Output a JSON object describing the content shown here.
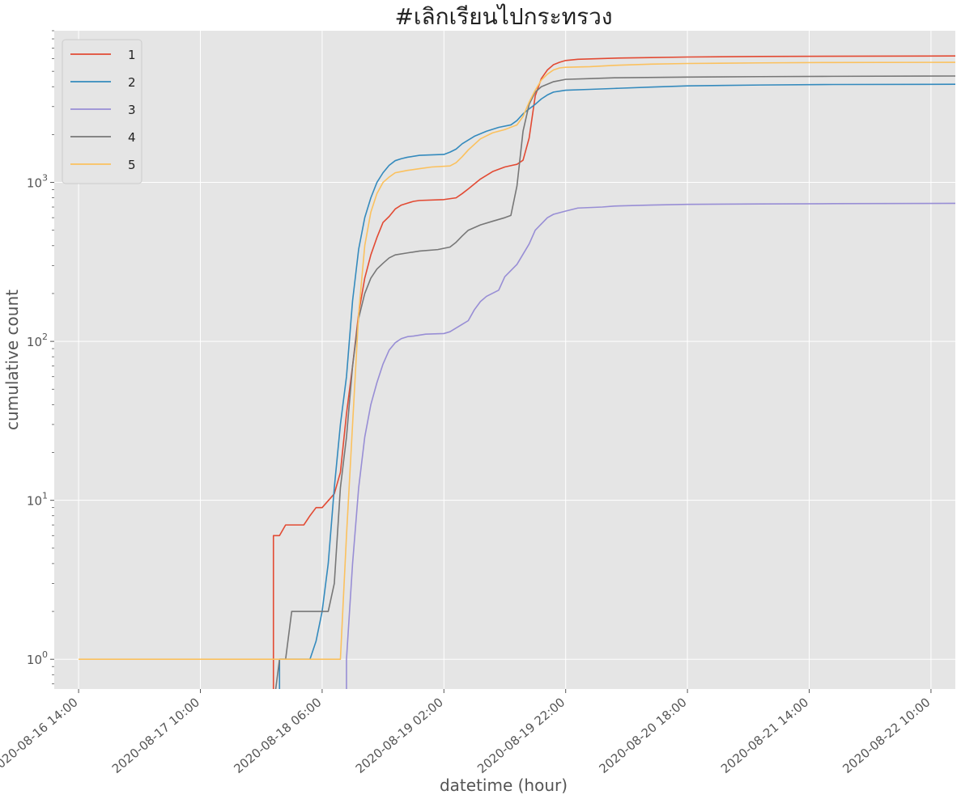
{
  "chart_data": {
    "type": "line",
    "title": "#เลิกเรียนไปกระทรวง",
    "xlabel": "datetime (hour)",
    "ylabel": "cumulative count",
    "yscale": "log",
    "ylim": [
      0.65,
      9000
    ],
    "xlim": [
      "2020-08-16 10:00",
      "2020-08-22 14:00"
    ],
    "grid": true,
    "legend_position": "top-left",
    "x_ticks": [
      "2020-08-16 14:00",
      "2020-08-17 10:00",
      "2020-08-18 06:00",
      "2020-08-19 02:00",
      "2020-08-19 22:00",
      "2020-08-20 18:00",
      "2020-08-21 14:00",
      "2020-08-22 10:00"
    ],
    "y_ticks": [
      {
        "value": 1,
        "base": "10",
        "exp": "0"
      },
      {
        "value": 10,
        "base": "10",
        "exp": "1"
      },
      {
        "value": 100,
        "base": "10",
        "exp": "2"
      },
      {
        "value": 1000,
        "base": "10",
        "exp": "3"
      }
    ],
    "series": [
      {
        "name": "1",
        "color": "#E24A33",
        "points": [
          [
            "2020-08-17 22:00",
            0.5
          ],
          [
            "2020-08-17 22:00",
            6
          ],
          [
            "2020-08-17 23:00",
            6
          ],
          [
            "2020-08-18 00:00",
            7
          ],
          [
            "2020-08-18 03:00",
            7
          ],
          [
            "2020-08-18 04:00",
            8
          ],
          [
            "2020-08-18 05:00",
            9
          ],
          [
            "2020-08-18 06:00",
            9
          ],
          [
            "2020-08-18 08:00",
            11
          ],
          [
            "2020-08-18 09:00",
            15
          ],
          [
            "2020-08-18 10:00",
            35
          ],
          [
            "2020-08-18 11:00",
            70
          ],
          [
            "2020-08-18 12:00",
            150
          ],
          [
            "2020-08-18 13:00",
            250
          ],
          [
            "2020-08-18 14:00",
            350
          ],
          [
            "2020-08-18 15:00",
            450
          ],
          [
            "2020-08-18 16:00",
            560
          ],
          [
            "2020-08-18 17:00",
            610
          ],
          [
            "2020-08-18 18:00",
            680
          ],
          [
            "2020-08-18 19:00",
            720
          ],
          [
            "2020-08-18 20:00",
            740
          ],
          [
            "2020-08-18 21:00",
            760
          ],
          [
            "2020-08-18 22:00",
            770
          ],
          [
            "2020-08-19 02:00",
            780
          ],
          [
            "2020-08-19 04:00",
            800
          ],
          [
            "2020-08-19 05:00",
            850
          ],
          [
            "2020-08-19 06:00",
            910
          ],
          [
            "2020-08-19 08:00",
            1050
          ],
          [
            "2020-08-19 10:00",
            1170
          ],
          [
            "2020-08-19 12:00",
            1250
          ],
          [
            "2020-08-19 14:00",
            1300
          ],
          [
            "2020-08-19 15:00",
            1380
          ],
          [
            "2020-08-19 16:00",
            1900
          ],
          [
            "2020-08-19 17:00",
            3500
          ],
          [
            "2020-08-19 18:00",
            4500
          ],
          [
            "2020-08-19 19:00",
            5100
          ],
          [
            "2020-08-19 20:00",
            5500
          ],
          [
            "2020-08-19 21:00",
            5700
          ],
          [
            "2020-08-19 22:00",
            5850
          ],
          [
            "2020-08-20 00:00",
            5950
          ],
          [
            "2020-08-20 06:00",
            6050
          ],
          [
            "2020-08-20 12:00",
            6100
          ],
          [
            "2020-08-20 18:00",
            6150
          ],
          [
            "2020-08-21 06:00",
            6200
          ],
          [
            "2020-08-22 00:00",
            6230
          ],
          [
            "2020-08-22 23:00",
            6250
          ]
        ]
      },
      {
        "name": "2",
        "color": "#348ABD",
        "points": [
          [
            "2020-08-17 23:00",
            0.5
          ],
          [
            "2020-08-17 23:00",
            1
          ],
          [
            "2020-08-18 04:00",
            1
          ],
          [
            "2020-08-18 05:00",
            1.3
          ],
          [
            "2020-08-18 06:00",
            2
          ],
          [
            "2020-08-18 07:00",
            4
          ],
          [
            "2020-08-18 08:00",
            12
          ],
          [
            "2020-08-18 09:00",
            30
          ],
          [
            "2020-08-18 10:00",
            60
          ],
          [
            "2020-08-18 11:00",
            180
          ],
          [
            "2020-08-18 12:00",
            380
          ],
          [
            "2020-08-18 13:00",
            600
          ],
          [
            "2020-08-18 14:00",
            800
          ],
          [
            "2020-08-18 15:00",
            1000
          ],
          [
            "2020-08-18 16:00",
            1150
          ],
          [
            "2020-08-18 17:00",
            1280
          ],
          [
            "2020-08-18 18:00",
            1370
          ],
          [
            "2020-08-18 19:00",
            1410
          ],
          [
            "2020-08-18 20:00",
            1440
          ],
          [
            "2020-08-18 22:00",
            1480
          ],
          [
            "2020-08-19 02:00",
            1500
          ],
          [
            "2020-08-19 03:00",
            1550
          ],
          [
            "2020-08-19 04:00",
            1620
          ],
          [
            "2020-08-19 05:00",
            1750
          ],
          [
            "2020-08-19 07:00",
            1950
          ],
          [
            "2020-08-19 09:00",
            2100
          ],
          [
            "2020-08-19 11:00",
            2220
          ],
          [
            "2020-08-19 13:00",
            2300
          ],
          [
            "2020-08-19 14:00",
            2450
          ],
          [
            "2020-08-19 15:00",
            2700
          ],
          [
            "2020-08-19 16:00",
            2900
          ],
          [
            "2020-08-19 17:00",
            3100
          ],
          [
            "2020-08-19 18:00",
            3350
          ],
          [
            "2020-08-19 19:00",
            3550
          ],
          [
            "2020-08-19 20:00",
            3700
          ],
          [
            "2020-08-19 22:00",
            3800
          ],
          [
            "2020-08-20 02:00",
            3850
          ],
          [
            "2020-08-20 06:00",
            3900
          ],
          [
            "2020-08-20 12:00",
            3980
          ],
          [
            "2020-08-20 18:00",
            4050
          ],
          [
            "2020-08-21 06:00",
            4100
          ],
          [
            "2020-08-21 18:00",
            4130
          ],
          [
            "2020-08-22 23:00",
            4150
          ]
        ]
      },
      {
        "name": "3",
        "color": "#988ED5",
        "points": [
          [
            "2020-08-18 10:00",
            0.5
          ],
          [
            "2020-08-18 10:00",
            1
          ],
          [
            "2020-08-18 11:00",
            4
          ],
          [
            "2020-08-18 12:00",
            12
          ],
          [
            "2020-08-18 13:00",
            25
          ],
          [
            "2020-08-18 14:00",
            40
          ],
          [
            "2020-08-18 15:00",
            55
          ],
          [
            "2020-08-18 16:00",
            72
          ],
          [
            "2020-08-18 17:00",
            88
          ],
          [
            "2020-08-18 18:00",
            98
          ],
          [
            "2020-08-18 19:00",
            104
          ],
          [
            "2020-08-18 20:00",
            107
          ],
          [
            "2020-08-18 21:00",
            108
          ],
          [
            "2020-08-18 23:00",
            111
          ],
          [
            "2020-08-19 02:00",
            112
          ],
          [
            "2020-08-19 03:00",
            115
          ],
          [
            "2020-08-19 05:00",
            128
          ],
          [
            "2020-08-19 06:00",
            135
          ],
          [
            "2020-08-19 07:00",
            158
          ],
          [
            "2020-08-19 08:00",
            178
          ],
          [
            "2020-08-19 09:00",
            192
          ],
          [
            "2020-08-19 11:00",
            210
          ],
          [
            "2020-08-19 12:00",
            255
          ],
          [
            "2020-08-19 14:00",
            305
          ],
          [
            "2020-08-19 16:00",
            410
          ],
          [
            "2020-08-19 17:00",
            500
          ],
          [
            "2020-08-19 19:00",
            600
          ],
          [
            "2020-08-19 20:00",
            630
          ],
          [
            "2020-08-19 22:00",
            660
          ],
          [
            "2020-08-20 00:00",
            690
          ],
          [
            "2020-08-20 04:00",
            700
          ],
          [
            "2020-08-20 06:00",
            710
          ],
          [
            "2020-08-20 12:00",
            720
          ],
          [
            "2020-08-20 18:00",
            728
          ],
          [
            "2020-08-21 06:00",
            732
          ],
          [
            "2020-08-21 18:00",
            735
          ],
          [
            "2020-08-22 23:00",
            740
          ]
        ]
      },
      {
        "name": "4",
        "color": "#777777",
        "points": [
          [
            "2020-08-17 22:00",
            0.5
          ],
          [
            "2020-08-17 22:00",
            0.5
          ],
          [
            "2020-08-17 23:00",
            1
          ],
          [
            "2020-08-18 00:00",
            1
          ],
          [
            "2020-08-18 01:00",
            2
          ],
          [
            "2020-08-18 07:00",
            2
          ],
          [
            "2020-08-18 08:00",
            3
          ],
          [
            "2020-08-18 09:00",
            12
          ],
          [
            "2020-08-18 10:00",
            25
          ],
          [
            "2020-08-18 11:00",
            70
          ],
          [
            "2020-08-18 12:00",
            140
          ],
          [
            "2020-08-18 13:00",
            200
          ],
          [
            "2020-08-18 14:00",
            250
          ],
          [
            "2020-08-18 15:00",
            285
          ],
          [
            "2020-08-18 16:00",
            310
          ],
          [
            "2020-08-18 17:00",
            335
          ],
          [
            "2020-08-18 18:00",
            350
          ],
          [
            "2020-08-18 20:00",
            360
          ],
          [
            "2020-08-18 22:00",
            370
          ],
          [
            "2020-08-19 01:00",
            378
          ],
          [
            "2020-08-19 03:00",
            392
          ],
          [
            "2020-08-19 04:00",
            420
          ],
          [
            "2020-08-19 05:00",
            460
          ],
          [
            "2020-08-19 06:00",
            500
          ],
          [
            "2020-08-19 08:00",
            540
          ],
          [
            "2020-08-19 10:00",
            570
          ],
          [
            "2020-08-19 12:00",
            600
          ],
          [
            "2020-08-19 13:00",
            620
          ],
          [
            "2020-08-19 14:00",
            950
          ],
          [
            "2020-08-19 15:00",
            2100
          ],
          [
            "2020-08-19 16:00",
            3100
          ],
          [
            "2020-08-19 17:00",
            3700
          ],
          [
            "2020-08-19 18:00",
            4000
          ],
          [
            "2020-08-19 20:00",
            4300
          ],
          [
            "2020-08-19 22:00",
            4450
          ],
          [
            "2020-08-20 02:00",
            4500
          ],
          [
            "2020-08-20 06:00",
            4550
          ],
          [
            "2020-08-20 18:00",
            4600
          ],
          [
            "2020-08-21 06:00",
            4630
          ],
          [
            "2020-08-21 18:00",
            4650
          ],
          [
            "2020-08-22 23:00",
            4680
          ]
        ]
      },
      {
        "name": "5",
        "color": "#FBC15E",
        "points": [
          [
            "2020-08-16 14:00",
            1
          ],
          [
            "2020-08-18 09:00",
            1
          ],
          [
            "2020-08-18 10:00",
            6
          ],
          [
            "2020-08-18 11:00",
            30
          ],
          [
            "2020-08-18 12:00",
            150
          ],
          [
            "2020-08-18 13:00",
            400
          ],
          [
            "2020-08-18 14:00",
            650
          ],
          [
            "2020-08-18 15:00",
            850
          ],
          [
            "2020-08-18 16:00",
            1000
          ],
          [
            "2020-08-18 17:00",
            1080
          ],
          [
            "2020-08-18 18:00",
            1150
          ],
          [
            "2020-08-18 19:00",
            1170
          ],
          [
            "2020-08-18 20:00",
            1190
          ],
          [
            "2020-08-18 22:00",
            1220
          ],
          [
            "2020-08-19 00:00",
            1250
          ],
          [
            "2020-08-19 03:00",
            1270
          ],
          [
            "2020-08-19 04:00",
            1330
          ],
          [
            "2020-08-19 05:00",
            1450
          ],
          [
            "2020-08-19 06:00",
            1600
          ],
          [
            "2020-08-19 08:00",
            1880
          ],
          [
            "2020-08-19 10:00",
            2050
          ],
          [
            "2020-08-19 12:00",
            2150
          ],
          [
            "2020-08-19 14:00",
            2300
          ],
          [
            "2020-08-19 15:00",
            2600
          ],
          [
            "2020-08-19 16:00",
            3200
          ],
          [
            "2020-08-19 17:00",
            3800
          ],
          [
            "2020-08-19 18:00",
            4400
          ],
          [
            "2020-08-19 19:00",
            4800
          ],
          [
            "2020-08-19 20:00",
            5100
          ],
          [
            "2020-08-19 21:00",
            5250
          ],
          [
            "2020-08-19 22:00",
            5300
          ],
          [
            "2020-08-20 02:00",
            5350
          ],
          [
            "2020-08-20 06:00",
            5450
          ],
          [
            "2020-08-20 12:00",
            5550
          ],
          [
            "2020-08-20 18:00",
            5600
          ],
          [
            "2020-08-21 06:00",
            5650
          ],
          [
            "2020-08-21 18:00",
            5680
          ],
          [
            "2020-08-22 23:00",
            5700
          ]
        ]
      }
    ]
  }
}
